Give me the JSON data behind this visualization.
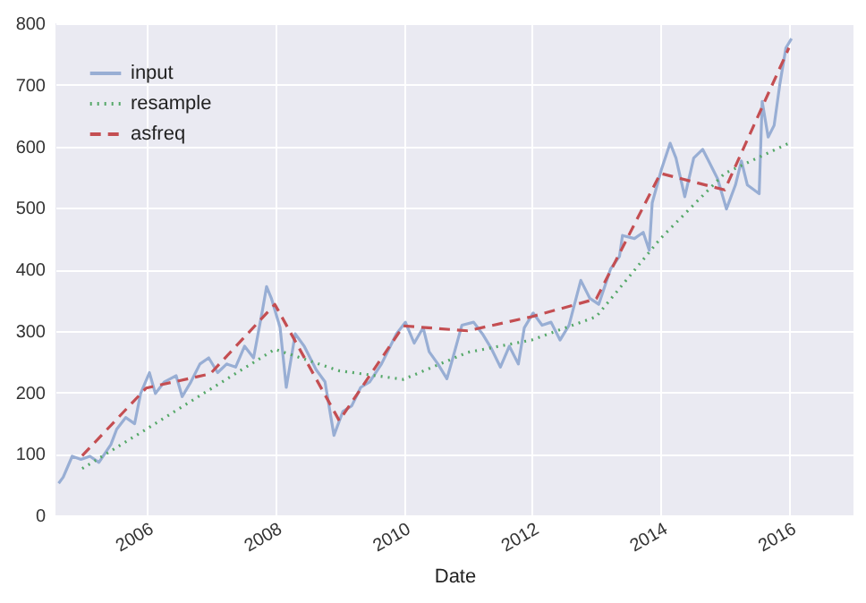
{
  "chart_data": {
    "type": "line",
    "xlabel": "Date",
    "xlim": [
      "2004-08-01",
      "2017-01-01"
    ],
    "xticks": [
      "2006",
      "2008",
      "2010",
      "2012",
      "2014",
      "2016"
    ],
    "ylim": [
      0,
      800
    ],
    "yticks": [
      0,
      100,
      200,
      300,
      400,
      500,
      600,
      700,
      800
    ],
    "grid": true,
    "legend": "top left",
    "series": [
      {
        "name": "input",
        "color": "#98aed4",
        "line_style": "solid",
        "x": [
          "2004-08-19",
          "2004-09-14",
          "2004-11-04",
          "2004-12-24",
          "2005-02-13",
          "2005-04-05",
          "2005-06-12",
          "2005-07-15",
          "2005-09-04",
          "2005-10-25",
          "2005-11-28",
          "2006-01-17",
          "2006-02-20",
          "2006-04-12",
          "2006-06-18",
          "2006-07-22",
          "2006-09-10",
          "2006-10-31",
          "2006-12-20",
          "2007-02-09",
          "2007-04-01",
          "2007-05-22",
          "2007-07-12",
          "2007-09-01",
          "2007-10-22",
          "2007-11-14",
          "2007-12-11",
          "2008-01-30",
          "2008-03-05",
          "2008-04-25",
          "2008-06-15",
          "2008-08-21",
          "2008-10-11",
          "2008-12-01",
          "2009-01-21",
          "2009-03-12",
          "2009-05-02",
          "2009-06-22",
          "2009-08-28",
          "2009-11-21",
          "2010-01-11",
          "2010-03-02",
          "2010-04-22",
          "2010-05-26",
          "2010-07-15",
          "2010-09-04",
          "2010-10-08",
          "2010-11-28",
          "2011-02-03",
          "2011-03-25",
          "2011-05-15",
          "2011-07-05",
          "2011-08-25",
          "2011-10-15",
          "2011-11-18",
          "2012-01-07",
          "2012-02-27",
          "2012-04-18",
          "2012-06-08",
          "2012-07-29",
          "2012-10-04",
          "2012-11-24",
          "2013-01-14",
          "2013-03-23",
          "2013-05-12",
          "2013-05-29",
          "2013-08-05",
          "2013-09-24",
          "2013-10-28",
          "2013-11-14",
          "2014-01-04",
          "2014-02-24",
          "2014-03-29",
          "2014-05-18",
          "2014-07-08",
          "2014-08-28",
          "2014-10-01",
          "2014-11-21",
          "2015-01-10",
          "2015-03-02",
          "2015-04-05",
          "2015-05-09",
          "2015-07-15",
          "2015-08-01",
          "2015-09-04",
          "2015-10-08",
          "2015-11-10",
          "2015-12-14",
          "2016-01-15"
        ],
        "values": [
          52,
          62,
          96,
          91,
          96,
          86,
          115,
          140,
          159,
          149,
          198,
          232,
          198,
          217,
          227,
          193,
          217,
          246,
          256,
          232,
          246,
          241,
          275,
          256,
          334,
          372,
          353,
          305,
          208,
          295,
          275,
          237,
          217,
          130,
          169,
          178,
          208,
          217,
          246,
          295,
          314,
          280,
          305,
          266,
          246,
          222,
          256,
          309,
          314,
          295,
          271,
          241,
          275,
          246,
          305,
          329,
          309,
          314,
          285,
          309,
          382,
          353,
          343,
          401,
          421,
          455,
          450,
          460,
          431,
          508,
          561,
          605,
          581,
          518,
          581,
          595,
          576,
          547,
          498,
          537,
          576,
          537,
          523,
          673,
          615,
          634,
          702,
          760,
          775
        ]
      },
      {
        "name": "resample",
        "color": "#55a868",
        "line_style": "dotted",
        "x": [
          "2004-12-31",
          "2005-12-30",
          "2006-12-29",
          "2007-12-31",
          "2008-12-31",
          "2009-12-31",
          "2010-12-31",
          "2011-12-30",
          "2012-12-31",
          "2013-12-31",
          "2014-12-31",
          "2015-12-31"
        ],
        "values": [
          76,
          140,
          205,
          270,
          235,
          221,
          265,
          285,
          323,
          450,
          556,
          605
        ]
      },
      {
        "name": "asfreq",
        "color": "#c44e52",
        "line_style": "dashed",
        "x": [
          "2004-12-31",
          "2005-12-30",
          "2006-12-29",
          "2007-12-31",
          "2008-12-31",
          "2009-12-31",
          "2010-12-31",
          "2011-12-30",
          "2012-12-31",
          "2013-12-31",
          "2014-12-31",
          "2015-12-31"
        ],
        "values": [
          97,
          207,
          230,
          343,
          154,
          308,
          300,
          323,
          352,
          556,
          529,
          760
        ]
      }
    ]
  }
}
